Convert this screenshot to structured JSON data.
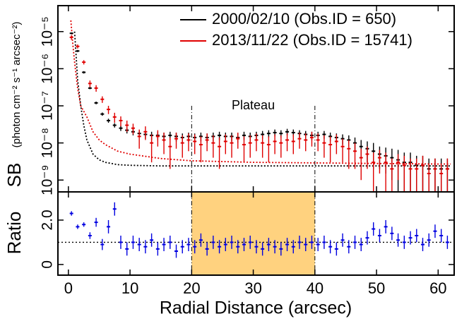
{
  "chart_data": [
    {
      "type": "scatter",
      "log_y": true,
      "ylabel": "SB",
      "ylabel_units": "(photon cm⁻² s⁻¹ arcsec⁻²)",
      "ylim": [
        4.8e-10,
        5e-05
      ],
      "yticks": [
        {
          "value": 1e-09,
          "label": "10⁻⁹"
        },
        {
          "value": 1e-08,
          "label": "10⁻⁸"
        },
        {
          "value": 1e-07,
          "label": "10⁻⁷"
        },
        {
          "value": 1e-06,
          "label": "10⁻⁶"
        },
        {
          "value": 1e-05,
          "label": "10⁻⁵"
        }
      ],
      "legend": "upper right",
      "x": [
        0.5,
        1.5,
        2.5,
        3.5,
        4.5,
        5.5,
        6.5,
        7.5,
        8.5,
        9.5,
        10.5,
        11.5,
        12.5,
        13.5,
        14.5,
        15.5,
        16.5,
        17.5,
        18.5,
        19.5,
        20.5,
        21.5,
        22.5,
        23.5,
        24.5,
        25.5,
        26.5,
        27.5,
        28.5,
        29.5,
        30.5,
        31.5,
        32.5,
        33.5,
        34.5,
        35.5,
        36.5,
        37.5,
        38.5,
        39.5,
        40.5,
        41.5,
        42.5,
        43.5,
        44.5,
        45.5,
        46.5,
        47.5,
        48.5,
        49.5,
        50.5,
        51.5,
        52.5,
        53.5,
        54.5,
        55.5,
        56.5,
        57.5,
        58.5,
        59.5,
        60.5,
        61.5
      ],
      "series": [
        {
          "name": "2000/02/10 (Obs.ID = 650)",
          "color": "#000000",
          "values": [
            9e-06,
            3e-06,
            8e-07,
            3e-07,
            1.2e-07,
            6e-08,
            4e-08,
            3e-08,
            2.5e-08,
            2.2e-08,
            2e-08,
            1.8e-08,
            1.7e-08,
            1.6e-08,
            1.6e-08,
            1.5e-08,
            1.6e-08,
            1.5e-08,
            1.4e-08,
            1.5e-08,
            1.4e-08,
            1.5e-08,
            1.4e-08,
            1.5e-08,
            1.6e-08,
            1.5e-08,
            1.5e-08,
            1.4e-08,
            1.6e-08,
            1.5e-08,
            1.6e-08,
            1.7e-08,
            1.8e-08,
            1.9e-08,
            1.8e-08,
            2e-08,
            1.9e-08,
            1.8e-08,
            1.7e-08,
            1.6e-08,
            1.6e-08,
            1.7e-08,
            1.5e-08,
            1.4e-08,
            1.3e-08,
            1.2e-08,
            1e-08,
            8e-09,
            7e-09,
            6e-09,
            5e-09,
            4.5e-09,
            4e-09,
            3.5e-09,
            3e-09,
            3e-09,
            2.5e-09,
            2.5e-09,
            2e-09,
            2e-09,
            2e-09,
            2e-09
          ],
          "errors": [
            5e-07,
            2e-07,
            6e-08,
            2e-08,
            1e-08,
            6e-09,
            5e-09,
            4e-09,
            4e-09,
            4e-09,
            4e-09,
            4e-09,
            4e-09,
            4e-09,
            4e-09,
            4e-09,
            4e-09,
            4e-09,
            4e-09,
            4e-09,
            4e-09,
            4e-09,
            4e-09,
            4e-09,
            4e-09,
            4e-09,
            4e-09,
            4e-09,
            4e-09,
            4e-09,
            4e-09,
            4e-09,
            4e-09,
            4e-09,
            4e-09,
            4e-09,
            4e-09,
            4e-09,
            4e-09,
            4e-09,
            4e-09,
            4e-09,
            4e-09,
            4e-09,
            4e-09,
            4e-09,
            4e-09,
            4e-09,
            4e-09,
            4e-09,
            3e-09,
            3e-09,
            3e-09,
            3e-09,
            2.5e-09,
            2.5e-09,
            2e-09,
            2e-09,
            1.8e-09,
            1.8e-09,
            1.8e-09,
            1.8e-09
          ]
        },
        {
          "name": "2013/11/22 (Obs.ID = 15741)",
          "color": "#e00000",
          "values": [
            7e-06,
            4e-06,
            1.5e-06,
            4e-07,
            3e-07,
            1.5e-07,
            8e-08,
            5e-08,
            4e-08,
            3e-08,
            2.5e-08,
            1.5e-08,
            2e-08,
            1e-08,
            1.5e-08,
            1.2e-08,
            8e-09,
            1.3e-08,
            1e-08,
            1.2e-08,
            1.1e-08,
            9e-09,
            1.2e-08,
            1e-08,
            8e-09,
            1.1e-08,
            1e-08,
            1.3e-08,
            9e-09,
            1e-08,
            1.2e-08,
            1e-08,
            9e-09,
            1.1e-08,
            1e-08,
            1.2e-08,
            1.1e-08,
            1.3e-08,
            1.2e-08,
            1.4e-08,
            1.2e-08,
            1e-08,
            9e-09,
            1.1e-08,
            8e-09,
            7e-09,
            6e-09,
            4e-09,
            5e-09,
            3e-09,
            4e-09,
            3e-09,
            2e-09,
            3e-09,
            2.5e-09,
            2e-09,
            2e-09,
            2.5e-09,
            1.5e-09,
            2e-09,
            1.5e-09,
            2e-09
          ],
          "errors": [
            1e-06,
            5e-07,
            2e-07,
            8e-08,
            6e-08,
            3e-08,
            2e-08,
            1.5e-08,
            1.2e-08,
            1e-08,
            8e-09,
            8e-09,
            8e-09,
            7e-09,
            7e-09,
            7e-09,
            6e-09,
            6e-09,
            6e-09,
            6e-09,
            6e-09,
            6e-09,
            6e-09,
            6e-09,
            6e-09,
            6e-09,
            6e-09,
            6e-09,
            6e-09,
            6e-09,
            6e-09,
            6e-09,
            6e-09,
            6e-09,
            6e-09,
            6e-09,
            6e-09,
            6e-09,
            6e-09,
            6e-09,
            6e-09,
            6e-09,
            6e-09,
            6e-09,
            5e-09,
            5e-09,
            4e-09,
            3e-09,
            3e-09,
            2.5e-09,
            2.5e-09,
            2.5e-09,
            1.8e-09,
            2e-09,
            2e-09,
            1.8e-09,
            1.8e-09,
            2e-09,
            1.3e-09,
            1.8e-09,
            1.3e-09,
            1.8e-09
          ]
        }
      ],
      "models": [
        {
          "color": "#000000",
          "x": [
            1,
            1.5,
            2,
            2.5,
            3,
            4,
            5,
            6,
            8,
            10,
            15,
            20,
            30,
            40,
            50,
            60,
            62
          ],
          "values": [
            1e-05,
            5e-07,
            1e-07,
            3e-08,
            1.2e-08,
            5e-09,
            3.5e-09,
            3e-09,
            2.6e-09,
            2.5e-09,
            2.4e-09,
            2.4e-09,
            2.4e-09,
            2.4e-09,
            2.4e-09,
            2.4e-09,
            2.4e-09
          ]
        },
        {
          "color": "#e00000",
          "x": [
            0.4,
            0.7,
            1,
            1.5,
            2,
            3,
            4,
            5,
            6,
            8,
            10,
            15,
            20,
            30,
            40,
            50,
            60,
            62
          ],
          "values": [
            2e-05,
            5e-06,
            1.5e-06,
            3e-07,
            1e-07,
            5e-08,
            2e-08,
            1.2e-08,
            9e-09,
            6e-09,
            5e-09,
            3.8e-09,
            3.3e-09,
            3e-09,
            2.9e-09,
            2.8e-09,
            2.7e-09,
            2.7e-09
          ]
        }
      ],
      "annotation": "Plateau",
      "vlines": [
        20,
        40
      ]
    },
    {
      "type": "scatter",
      "ylabel": "Ratio",
      "xlabel": "Radial Distance (arcsec)",
      "xlim": [
        -1.7,
        62.6
      ],
      "xticks": [
        0,
        10,
        20,
        30,
        40,
        50,
        60
      ],
      "ylim": [
        -0.48,
        3.27
      ],
      "yticks": [
        0,
        {
          "value": 2,
          "label": "2.0"
        }
      ],
      "hline": 1,
      "shade": [
        20,
        40
      ],
      "shade_color": "#ffd27f",
      "x": [
        0.5,
        1.5,
        2.5,
        3.5,
        4.5,
        5.5,
        6.5,
        7.5,
        8.5,
        9.5,
        10.5,
        11.5,
        12.5,
        13.5,
        14.5,
        15.5,
        16.5,
        17.5,
        18.5,
        19.5,
        20.5,
        21.5,
        22.5,
        23.5,
        24.5,
        25.5,
        26.5,
        27.5,
        28.5,
        29.5,
        30.5,
        31.5,
        32.5,
        33.5,
        34.5,
        35.5,
        36.5,
        37.5,
        38.5,
        39.5,
        40.5,
        41.5,
        42.5,
        43.5,
        44.5,
        45.5,
        46.5,
        47.5,
        48.5,
        49.5,
        50.5,
        51.5,
        52.5,
        53.5,
        54.5,
        55.5,
        56.5,
        57.5,
        58.5,
        59.5,
        60.5,
        61.5
      ],
      "series": [
        {
          "color": "#0000e0",
          "values": [
            2.3,
            1.7,
            1.8,
            1.3,
            1.9,
            0.9,
            1.7,
            2.5,
            1.0,
            0.7,
            1.0,
            0.9,
            0.8,
            1.1,
            0.7,
            0.9,
            1.0,
            0.6,
            0.8,
            0.9,
            0.8,
            1.1,
            0.7,
            1.0,
            0.8,
            0.9,
            1.0,
            0.8,
            0.9,
            1.0,
            0.8,
            0.7,
            0.9,
            0.8,
            0.7,
            0.9,
            0.8,
            1.0,
            0.9,
            1.0,
            0.9,
            1.0,
            0.8,
            0.7,
            1.1,
            0.8,
            1.0,
            0.9,
            1.2,
            1.6,
            1.3,
            1.7,
            1.4,
            1.1,
            1.0,
            1.2,
            1.3,
            0.9,
            1.1,
            1.5,
            1.3,
            1.0
          ],
          "errors": [
            0.1,
            0.1,
            0.1,
            0.15,
            0.2,
            0.25,
            0.3,
            0.3,
            0.3,
            0.3,
            0.3,
            0.3,
            0.3,
            0.3,
            0.3,
            0.3,
            0.3,
            0.3,
            0.3,
            0.3,
            0.3,
            0.3,
            0.3,
            0.3,
            0.3,
            0.3,
            0.3,
            0.3,
            0.3,
            0.3,
            0.3,
            0.3,
            0.3,
            0.3,
            0.3,
            0.3,
            0.3,
            0.3,
            0.3,
            0.3,
            0.3,
            0.3,
            0.3,
            0.3,
            0.3,
            0.3,
            0.3,
            0.3,
            0.3,
            0.3,
            0.3,
            0.3,
            0.3,
            0.3,
            0.3,
            0.3,
            0.3,
            0.3,
            0.3,
            0.3,
            0.3,
            0.3
          ]
        }
      ]
    }
  ]
}
